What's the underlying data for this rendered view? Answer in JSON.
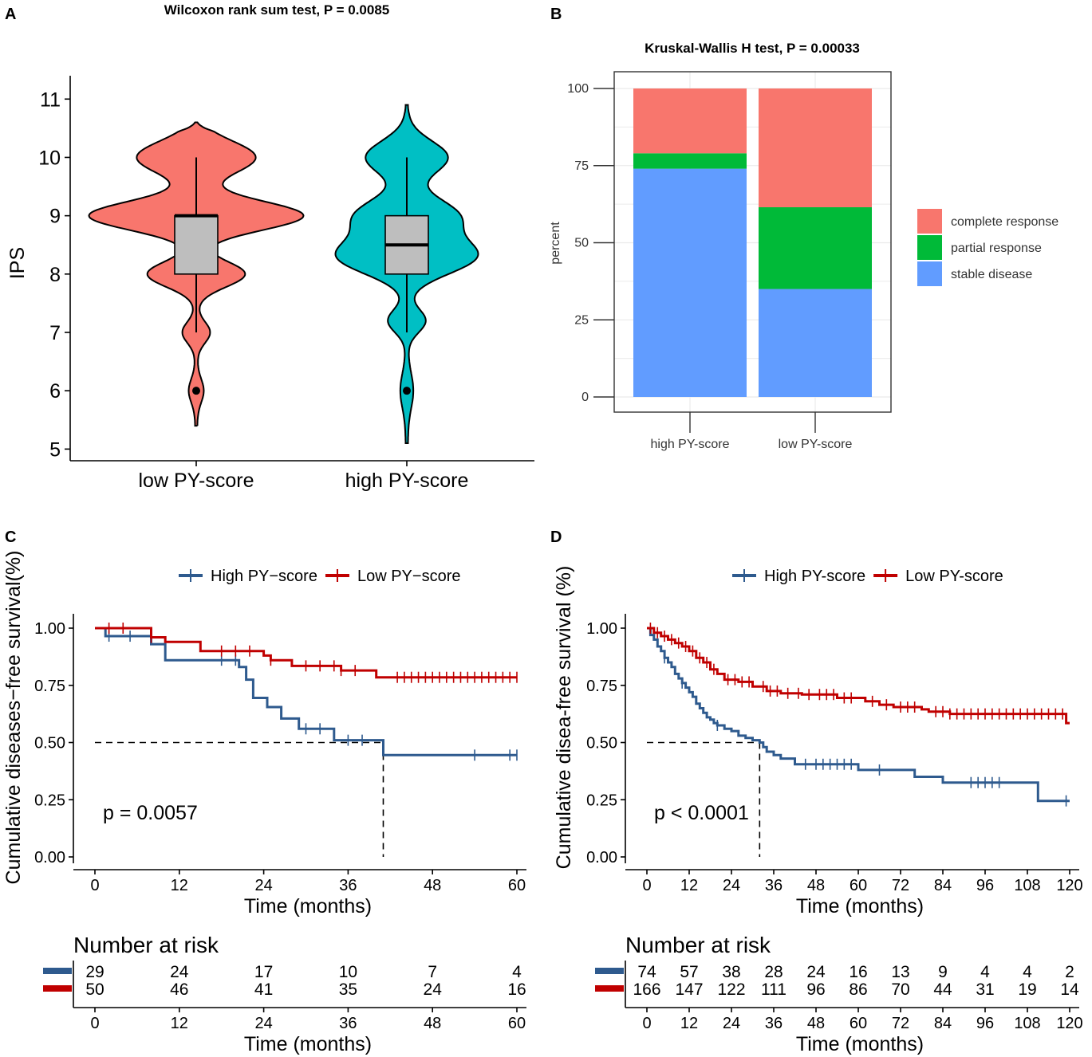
{
  "panels": {
    "A": "A",
    "B": "B",
    "C": "C",
    "D": "D"
  },
  "chart_data": [
    {
      "panel": "A",
      "type": "violin",
      "title": "Wilcoxon rank sum test, P = 0.0085",
      "ylabel": "IPS",
      "xlabel": "",
      "ylim": [
        4.8,
        11.4
      ],
      "yticks": [
        5,
        6,
        7,
        8,
        9,
        10,
        11
      ],
      "categories": [
        "low PY-score",
        "high PY-score"
      ],
      "series": [
        {
          "name": "low PY-score",
          "color": "#f8766d",
          "min": 5.4,
          "max": 10.6,
          "box": {
            "q1": 8,
            "median": 9,
            "q3": 9,
            "whisker_low": 7,
            "whisker_high": 10
          },
          "outliers": [
            6
          ]
        },
        {
          "name": "high PY-score",
          "color": "#00bfc4",
          "min": 5.1,
          "max": 10.9,
          "box": {
            "q1": 8,
            "median": 8.5,
            "q3": 9,
            "whisker_low": 7,
            "whisker_high": 10
          },
          "outliers": [
            6
          ]
        }
      ]
    },
    {
      "panel": "B",
      "type": "bar",
      "stacked": true,
      "title": "Kruskal-Wallis H test, P = 0.00033",
      "ylabel": "percent",
      "ylim": [
        0,
        100
      ],
      "yticks": [
        0,
        25,
        50,
        75,
        100
      ],
      "categories": [
        "high PY-score",
        "low PY-score"
      ],
      "series": [
        {
          "name": "stable disease",
          "color": "#619cff",
          "values": [
            74,
            35
          ]
        },
        {
          "name": "partial response",
          "color": "#00ba38",
          "values": [
            5,
            26.5
          ]
        },
        {
          "name": "complete response",
          "color": "#f8766d",
          "values": [
            21,
            38.5
          ]
        }
      ],
      "legend": [
        "complete response",
        "partial response",
        "stable disease"
      ]
    },
    {
      "panel": "C",
      "type": "line",
      "subtype": "kaplan-meier",
      "ylabel": "Cumulative diseases−free survival(%)",
      "xlabel": "Time (months)",
      "xlim": [
        0,
        60
      ],
      "ylim": [
        0,
        1
      ],
      "xticks": [
        0,
        12,
        24,
        36,
        48,
        60
      ],
      "yticks": [
        "0.00",
        "0.25",
        "0.50",
        "0.75",
        "1.00"
      ],
      "pvalue": "p = 0.0057",
      "median_x": 41,
      "series": [
        {
          "name": "High PY−score",
          "color": "#2e5a8e",
          "x": [
            0,
            1.5,
            8,
            10,
            20.5,
            21.5,
            22.5,
            24.5,
            26.5,
            29,
            34,
            41,
            60
          ],
          "y": [
            1,
            0.965,
            0.93,
            0.86,
            0.83,
            0.775,
            0.695,
            0.655,
            0.605,
            0.56,
            0.51,
            0.445,
            0.445
          ],
          "censor": [
            2,
            5,
            18,
            20,
            30,
            32,
            36,
            38,
            54,
            59,
            60
          ]
        },
        {
          "name": "Low PY−score",
          "color": "#c00000",
          "x": [
            0,
            8,
            10,
            15,
            24,
            25,
            28,
            35,
            40,
            60
          ],
          "y": [
            1,
            0.96,
            0.94,
            0.9,
            0.88,
            0.86,
            0.835,
            0.815,
            0.785,
            0.785
          ],
          "censor": [
            2,
            4,
            8,
            18,
            20,
            22,
            25,
            30,
            32,
            34,
            35,
            37,
            43,
            44,
            45,
            46,
            47,
            48,
            49,
            50,
            51,
            52,
            53,
            54,
            55,
            56,
            57,
            58,
            59,
            60
          ]
        }
      ],
      "risk_table": {
        "title": "Number at risk",
        "times": [
          0,
          12,
          24,
          36,
          48,
          60
        ],
        "rows": [
          {
            "color": "#2e5a8e",
            "values": [
              "29",
              "24",
              "17",
              "10",
              "7",
              "4"
            ]
          },
          {
            "color": "#c00000",
            "values": [
              "50",
              "46",
              "41",
              "35",
              "24",
              "16"
            ]
          }
        ],
        "xlabel": "Time (months)"
      }
    },
    {
      "panel": "D",
      "type": "line",
      "subtype": "kaplan-meier",
      "ylabel": "Cumulative disea-free survival (%)",
      "xlabel": "Time (months)",
      "xlim": [
        0,
        120
      ],
      "ylim": [
        0,
        1
      ],
      "xticks": [
        0,
        12,
        24,
        36,
        48,
        60,
        72,
        84,
        96,
        108,
        120
      ],
      "yticks": [
        "0.00",
        "0.25",
        "0.50",
        "0.75",
        "1.00"
      ],
      "pvalue": "p < 0.0001",
      "median_x": 32,
      "series": [
        {
          "name": "High PY-score",
          "color": "#2e5a8e",
          "x": [
            0,
            1,
            2,
            3,
            4,
            5,
            6,
            7,
            8,
            9,
            10,
            11,
            12,
            13,
            14,
            15,
            16,
            17,
            18,
            19,
            20,
            22,
            24,
            26,
            28,
            30,
            32,
            33,
            34,
            36,
            38,
            42,
            60,
            67,
            76,
            84,
            111,
            120
          ],
          "y": [
            1,
            0.97,
            0.95,
            0.92,
            0.9,
            0.87,
            0.85,
            0.83,
            0.8,
            0.78,
            0.76,
            0.74,
            0.72,
            0.7,
            0.67,
            0.65,
            0.63,
            0.61,
            0.6,
            0.585,
            0.575,
            0.56,
            0.55,
            0.53,
            0.52,
            0.51,
            0.5,
            0.48,
            0.46,
            0.445,
            0.43,
            0.405,
            0.38,
            0.38,
            0.35,
            0.325,
            0.245,
            0.245
          ],
          "censor": [
            5,
            10,
            20,
            45,
            48,
            50,
            52,
            54,
            56,
            58,
            66,
            92,
            94,
            96,
            98,
            100,
            119
          ]
        },
        {
          "name": "Low PY-score",
          "color": "#c00000",
          "x": [
            0,
            2,
            4,
            6,
            8,
            10,
            12,
            14,
            16,
            18,
            20,
            22,
            26,
            30,
            34,
            38,
            44,
            54,
            62,
            66,
            70,
            78,
            80,
            86,
            119,
            120
          ],
          "y": [
            1,
            0.98,
            0.965,
            0.95,
            0.935,
            0.92,
            0.9,
            0.87,
            0.85,
            0.82,
            0.8,
            0.775,
            0.765,
            0.745,
            0.725,
            0.715,
            0.71,
            0.695,
            0.68,
            0.665,
            0.655,
            0.645,
            0.635,
            0.625,
            0.585,
            0.585
          ],
          "censor": [
            1,
            3,
            5,
            7,
            9,
            11,
            13,
            15,
            17,
            19,
            23,
            25,
            27,
            29,
            33,
            35,
            37,
            40,
            43,
            46,
            49,
            51,
            53,
            56,
            58,
            64,
            68,
            72,
            74,
            76,
            82,
            84,
            86,
            88,
            90,
            92,
            94,
            96,
            98,
            100,
            102,
            104,
            106,
            108,
            110,
            112,
            114,
            116,
            118
          ]
        }
      ],
      "risk_table": {
        "title": "Number at risk",
        "times": [
          0,
          12,
          24,
          36,
          48,
          60,
          72,
          84,
          96,
          108,
          120
        ],
        "rows": [
          {
            "color": "#2e5a8e",
            "values": [
              "74",
              "57",
              "38",
              "28",
              "24",
              "16",
              "13",
              "9",
              "4",
              "4",
              "2"
            ]
          },
          {
            "color": "#c00000",
            "values": [
              "166",
              "147",
              "122",
              "111",
              "96",
              "86",
              "70",
              "44",
              "31",
              "19",
              "14"
            ]
          }
        ],
        "xlabel": "Time (months)"
      }
    }
  ]
}
